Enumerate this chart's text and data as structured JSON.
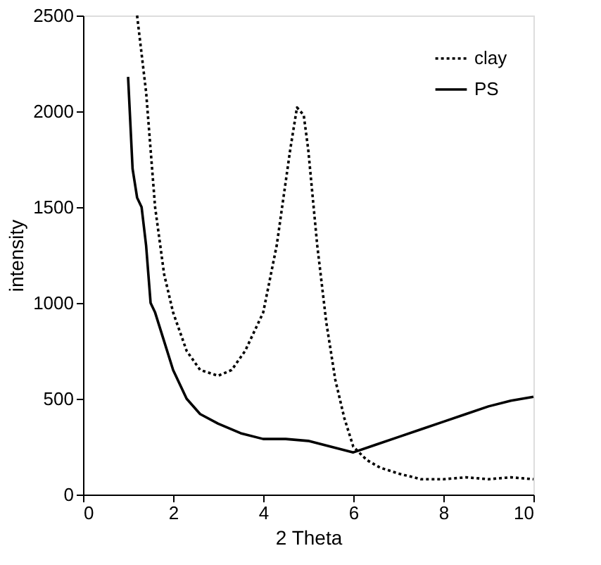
{
  "chart_data": {
    "type": "line",
    "xlabel": "2 Theta",
    "ylabel": "intensity",
    "xlim": [
      0,
      10
    ],
    "ylim": [
      0,
      2500
    ],
    "xticks": [
      0,
      2,
      4,
      6,
      8,
      10
    ],
    "yticks": [
      0,
      500,
      1000,
      1500,
      2000,
      2500
    ],
    "grid": false,
    "legend": "top right",
    "series": [
      {
        "name": "clay",
        "color": "#000000",
        "line_style": "dotted",
        "x": [
          1.2,
          1.3,
          1.4,
          1.5,
          1.6,
          1.8,
          2.0,
          2.3,
          2.6,
          3.0,
          3.3,
          3.6,
          4.0,
          4.3,
          4.6,
          4.75,
          4.9,
          5.0,
          5.2,
          5.4,
          5.6,
          5.8,
          6.0,
          6.3,
          6.6,
          7.0,
          7.5,
          8.0,
          8.5,
          9.0,
          9.5,
          10.0
        ],
        "values": [
          2500,
          2300,
          2100,
          1800,
          1500,
          1150,
          950,
          750,
          650,
          620,
          650,
          750,
          950,
          1300,
          1800,
          2020,
          1980,
          1800,
          1300,
          900,
          600,
          400,
          250,
          180,
          140,
          110,
          80,
          80,
          90,
          80,
          90,
          80
        ]
      },
      {
        "name": "PS",
        "color": "#000000",
        "line_style": "solid",
        "x": [
          1.0,
          1.1,
          1.2,
          1.3,
          1.4,
          1.5,
          1.6,
          1.8,
          2.0,
          2.3,
          2.6,
          3.0,
          3.5,
          4.0,
          4.5,
          5.0,
          5.5,
          6.0,
          6.5,
          7.0,
          7.5,
          8.0,
          8.5,
          9.0,
          9.5,
          10.0
        ],
        "values": [
          2180,
          1700,
          1550,
          1500,
          1300,
          1000,
          950,
          800,
          650,
          500,
          420,
          370,
          320,
          290,
          290,
          280,
          250,
          220,
          260,
          300,
          340,
          380,
          420,
          460,
          490,
          510
        ]
      }
    ]
  }
}
